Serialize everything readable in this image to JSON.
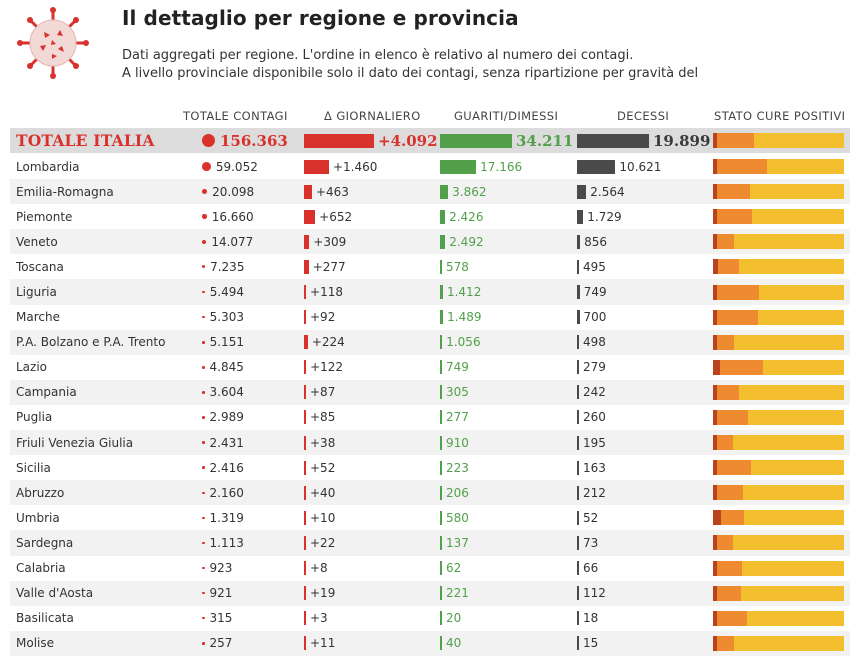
{
  "header": {
    "title": "Il dettaglio per regione e provincia",
    "subtitle_line1": "Dati aggregati per regione. L'ordine in elenco è relativo al numero dei contagi.",
    "subtitle_line2": "A livello provinciale disponibile solo il dato dei contagi, senza ripartizione per gravità del"
  },
  "columns": {
    "contagi": "TOTALE CONTAGI",
    "giornaliero": "Δ GIORNALIERO",
    "guariti": "GUARITI/DIMESSI",
    "decessi": "DECESSI",
    "stato": "STATO CURE POSITIVI"
  },
  "colors": {
    "contagi": "#d9312b",
    "guariti": "#52a04a",
    "decessi": "#4a4a4a",
    "stato_segments": [
      "#b8431c",
      "#ee8a2f",
      "#f3bf2f"
    ]
  },
  "icons": {
    "logo": "virus-icon"
  },
  "chart_data": {
    "type": "table",
    "total": {
      "region": "TOTALE ITALIA",
      "contagi": 156363,
      "contagi_label": "156.363",
      "giornaliero": 4092,
      "giornaliero_label": "+4.092",
      "guariti": 34211,
      "guariti_label": "34.211",
      "decessi": 19899,
      "decessi_label": "19.899",
      "stato": [
        0.03,
        0.28,
        0.69
      ]
    },
    "rows": [
      {
        "region": "Lombardia",
        "contagi": 59052,
        "contagi_label": "59.052",
        "giornaliero": 1460,
        "giornaliero_label": "+1.460",
        "guariti": 17166,
        "guariti_label": "17.166",
        "decessi": 10621,
        "decessi_label": "10.621",
        "stato": [
          0.03,
          0.38,
          0.59
        ]
      },
      {
        "region": "Emilia-Romagna",
        "contagi": 20098,
        "contagi_label": "20.098",
        "giornaliero": 463,
        "giornaliero_label": "+463",
        "guariti": 3862,
        "guariti_label": "3.862",
        "decessi": 2564,
        "decessi_label": "2.564",
        "stato": [
          0.03,
          0.25,
          0.72
        ]
      },
      {
        "region": "Piemonte",
        "contagi": 16660,
        "contagi_label": "16.660",
        "giornaliero": 652,
        "giornaliero_label": "+652",
        "guariti": 2426,
        "guariti_label": "2.426",
        "decessi": 1729,
        "decessi_label": "1.729",
        "stato": [
          0.03,
          0.27,
          0.7
        ]
      },
      {
        "region": "Veneto",
        "contagi": 14077,
        "contagi_label": "14.077",
        "giornaliero": 309,
        "giornaliero_label": "+309",
        "guariti": 2492,
        "guariti_label": "2.492",
        "decessi": 856,
        "decessi_label": "856",
        "stato": [
          0.03,
          0.13,
          0.84
        ]
      },
      {
        "region": "Toscana",
        "contagi": 7235,
        "contagi_label": "7.235",
        "giornaliero": 277,
        "giornaliero_label": "+277",
        "guariti": 578,
        "guariti_label": "578",
        "decessi": 495,
        "decessi_label": "495",
        "stato": [
          0.04,
          0.16,
          0.8
        ]
      },
      {
        "region": "Liguria",
        "contagi": 5494,
        "contagi_label": "5.494",
        "giornaliero": 118,
        "giornaliero_label": "+118",
        "guariti": 1412,
        "guariti_label": "1.412",
        "decessi": 749,
        "decessi_label": "749",
        "stato": [
          0.03,
          0.32,
          0.65
        ]
      },
      {
        "region": "Marche",
        "contagi": 5303,
        "contagi_label": "5.303",
        "giornaliero": 92,
        "giornaliero_label": "+92",
        "guariti": 1489,
        "guariti_label": "1.489",
        "decessi": 700,
        "decessi_label": "700",
        "stato": [
          0.03,
          0.31,
          0.66
        ]
      },
      {
        "region": "P.A. Bolzano e P.A. Trento",
        "contagi": 5151,
        "contagi_label": "5.151",
        "giornaliero": 224,
        "giornaliero_label": "+224",
        "guariti": 1056,
        "guariti_label": "1.056",
        "decessi": 498,
        "decessi_label": "498",
        "stato": [
          0.03,
          0.13,
          0.84
        ]
      },
      {
        "region": "Lazio",
        "contagi": 4845,
        "contagi_label": "4.845",
        "giornaliero": 122,
        "giornaliero_label": "+122",
        "guariti": 749,
        "guariti_label": "749",
        "decessi": 279,
        "decessi_label": "279",
        "stato": [
          0.05,
          0.33,
          0.62
        ]
      },
      {
        "region": "Campania",
        "contagi": 3604,
        "contagi_label": "3.604",
        "giornaliero": 87,
        "giornaliero_label": "+87",
        "guariti": 305,
        "guariti_label": "305",
        "decessi": 242,
        "decessi_label": "242",
        "stato": [
          0.03,
          0.17,
          0.8
        ]
      },
      {
        "region": "Puglia",
        "contagi": 2989,
        "contagi_label": "2.989",
        "giornaliero": 85,
        "giornaliero_label": "+85",
        "guariti": 277,
        "guariti_label": "277",
        "decessi": 260,
        "decessi_label": "260",
        "stato": [
          0.03,
          0.24,
          0.73
        ]
      },
      {
        "region": "Friuli Venezia Giulia",
        "contagi": 2431,
        "contagi_label": "2.431",
        "giornaliero": 38,
        "giornaliero_label": "+38",
        "guariti": 910,
        "guariti_label": "910",
        "decessi": 195,
        "decessi_label": "195",
        "stato": [
          0.03,
          0.12,
          0.85
        ]
      },
      {
        "region": "Sicilia",
        "contagi": 2416,
        "contagi_label": "2.416",
        "giornaliero": 52,
        "giornaliero_label": "+52",
        "guariti": 223,
        "guariti_label": "223",
        "decessi": 163,
        "decessi_label": "163",
        "stato": [
          0.03,
          0.26,
          0.71
        ]
      },
      {
        "region": "Abruzzo",
        "contagi": 2160,
        "contagi_label": "2.160",
        "giornaliero": 40,
        "giornaliero_label": "+40",
        "guariti": 206,
        "guariti_label": "206",
        "decessi": 212,
        "decessi_label": "212",
        "stato": [
          0.03,
          0.2,
          0.77
        ]
      },
      {
        "region": "Umbria",
        "contagi": 1319,
        "contagi_label": "1.319",
        "giornaliero": 10,
        "giornaliero_label": "+10",
        "guariti": 580,
        "guariti_label": "580",
        "decessi": 52,
        "decessi_label": "52",
        "stato": [
          0.06,
          0.18,
          0.76
        ]
      },
      {
        "region": "Sardegna",
        "contagi": 1113,
        "contagi_label": "1.113",
        "giornaliero": 22,
        "giornaliero_label": "+22",
        "guariti": 137,
        "guariti_label": "137",
        "decessi": 73,
        "decessi_label": "73",
        "stato": [
          0.03,
          0.12,
          0.85
        ]
      },
      {
        "region": "Calabria",
        "contagi": 923,
        "contagi_label": "923",
        "giornaliero": 8,
        "giornaliero_label": "+8",
        "guariti": 62,
        "guariti_label": "62",
        "decessi": 66,
        "decessi_label": "66",
        "stato": [
          0.03,
          0.19,
          0.78
        ]
      },
      {
        "region": "Valle d'Aosta",
        "contagi": 921,
        "contagi_label": "921",
        "giornaliero": 19,
        "giornaliero_label": "+19",
        "guariti": 221,
        "guariti_label": "221",
        "decessi": 112,
        "decessi_label": "112",
        "stato": [
          0.03,
          0.18,
          0.79
        ]
      },
      {
        "region": "Basilicata",
        "contagi": 315,
        "contagi_label": "315",
        "giornaliero": 3,
        "giornaliero_label": "+3",
        "guariti": 20,
        "guariti_label": "20",
        "decessi": 18,
        "decessi_label": "18",
        "stato": [
          0.03,
          0.23,
          0.74
        ]
      },
      {
        "region": "Molise",
        "contagi": 257,
        "contagi_label": "257",
        "giornaliero": 11,
        "giornaliero_label": "+11",
        "guariti": 40,
        "guariti_label": "40",
        "decessi": 15,
        "decessi_label": "15",
        "stato": [
          0.03,
          0.13,
          0.84
        ]
      }
    ]
  }
}
